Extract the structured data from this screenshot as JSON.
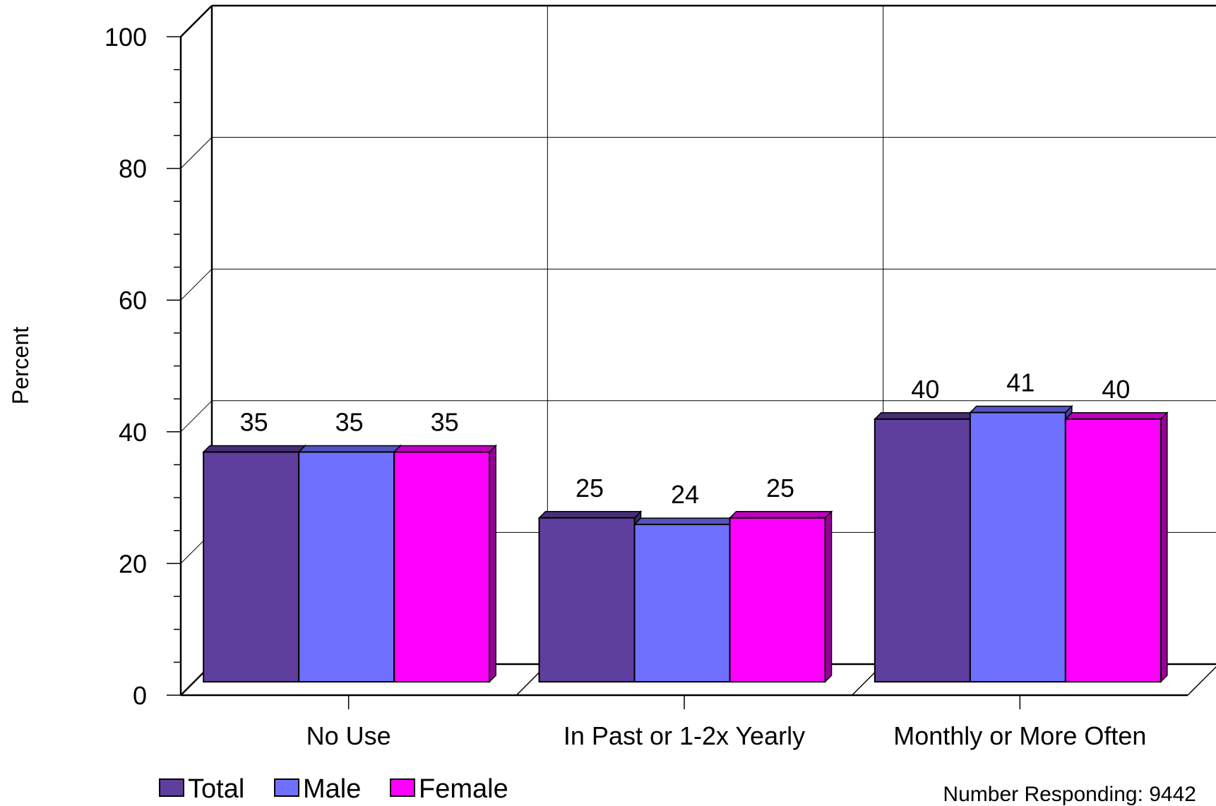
{
  "chart_data": {
    "type": "bar",
    "categories": [
      "No Use",
      "In Past or 1-2x Yearly",
      "Monthly or More Often"
    ],
    "series": [
      {
        "name": "Total",
        "values": [
          35,
          25,
          40
        ],
        "color": "#5F3F9E"
      },
      {
        "name": "Male",
        "values": [
          35,
          24,
          41
        ],
        "color": "#7070FF"
      },
      {
        "name": "Female",
        "values": [
          35,
          25,
          40
        ],
        "color": "#FF00FF"
      }
    ],
    "ylabel": "Percent",
    "ylim": [
      0,
      100
    ],
    "yticks": [
      "0",
      "20",
      "40",
      "60",
      "80",
      "100"
    ],
    "grid": true,
    "legend": "bottom-left",
    "data_labels": [
      [
        "35",
        "35",
        "35"
      ],
      [
        "25",
        "24",
        "25"
      ],
      [
        "40",
        "41",
        "40"
      ]
    ]
  },
  "footnote": "Number Responding: 9442"
}
